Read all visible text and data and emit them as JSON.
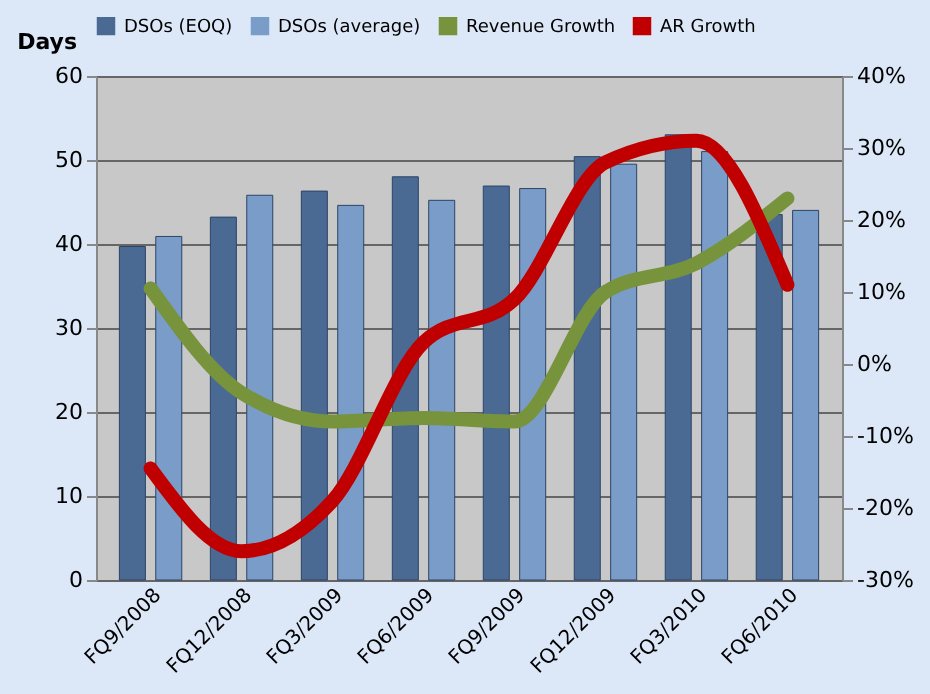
{
  "chart_data": {
    "type": "bar",
    "categories": [
      "FQ9/2008",
      "FQ12/2008",
      "FQ3/2009",
      "FQ6/2009",
      "FQ9/2009",
      "FQ12/2009",
      "FQ3/2010",
      "FQ6/2010"
    ],
    "ylabel": "Days",
    "series": [
      {
        "name": "DSOs (EOQ)",
        "color": "#4a6a94",
        "values": [
          39.7,
          43.2,
          46.3,
          48.0,
          46.9,
          50.4,
          53,
          43.5
        ]
      },
      {
        "name": "DSOs (average)",
        "color": "#7a9cc8",
        "values": [
          40.9,
          45.8,
          44.6,
          45.2,
          46.6,
          49.5,
          51,
          44.0
        ]
      },
      {
        "name": "Revenue Growth",
        "type": "line",
        "axis": "y2",
        "color": "#77933c",
        "values": [
          10.5,
          -4,
          -8,
          -7.5,
          -8,
          10,
          14,
          23
        ]
      },
      {
        "name": "AR Growth",
        "type": "line",
        "axis": "y2",
        "color": "#c00000",
        "values": [
          -14.5,
          -26,
          -19,
          3,
          9,
          28,
          31,
          11
        ]
      }
    ],
    "ylim": [
      0,
      60
    ],
    "yticks": [
      0,
      10,
      20,
      30,
      40,
      50,
      60
    ],
    "y2lim": [
      -30,
      40
    ],
    "y2ticks": [
      {
        "value": -30,
        "label": "-30%"
      },
      {
        "value": -20,
        "label": "-20%"
      },
      {
        "value": -10,
        "label": "-10%"
      },
      {
        "value": 0,
        "label": "0%"
      },
      {
        "value": 10,
        "label": "10%"
      },
      {
        "value": 20,
        "label": "20%"
      },
      {
        "value": 30,
        "label": "30%"
      },
      {
        "value": 40,
        "label": "40%"
      }
    ],
    "grid": "y",
    "legend": "top"
  }
}
